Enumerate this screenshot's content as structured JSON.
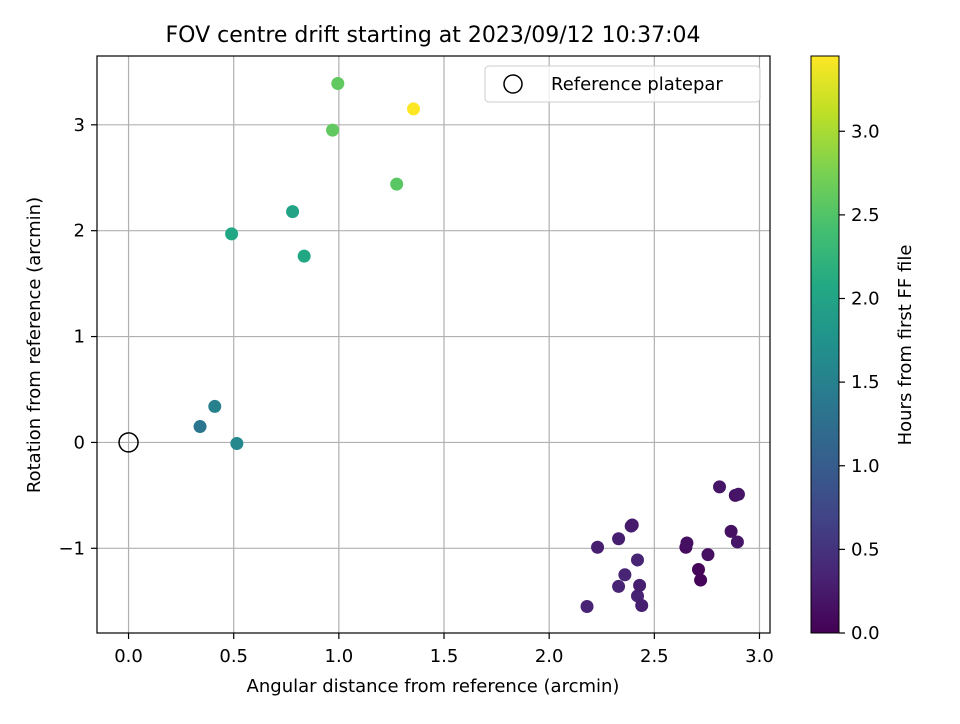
{
  "chart_data": {
    "type": "scatter",
    "title": "FOV centre drift starting at 2023/09/12 10:37:04",
    "xlabel": "Angular distance from reference (arcmin)",
    "ylabel": "Rotation from reference (arcmin)",
    "xlim": [
      -0.15,
      3.05
    ],
    "ylim": [
      -1.8,
      3.65
    ],
    "x_ticks": [
      0.0,
      0.5,
      1.0,
      1.5,
      2.0,
      2.5,
      3.0
    ],
    "x_tick_labels": [
      "0.0",
      "0.5",
      "1.0",
      "1.5",
      "2.0",
      "2.5",
      "3.0"
    ],
    "y_ticks": [
      -1,
      0,
      1,
      2,
      3
    ],
    "y_tick_labels": [
      "−1",
      "0",
      "1",
      "2",
      "3"
    ],
    "grid": true,
    "legend": {
      "position": "top-right",
      "entries": [
        "Reference platepar"
      ]
    },
    "colormap": "viridis",
    "colorbar": {
      "label": "Hours from first FF file",
      "range": [
        0.0,
        3.45
      ],
      "ticks": [
        0.0,
        0.5,
        1.0,
        1.5,
        2.0,
        2.5,
        3.0
      ],
      "tick_labels": [
        "0.0",
        "0.5",
        "1.0",
        "1.5",
        "2.0",
        "2.5",
        "3.0"
      ]
    },
    "reference_point": {
      "name": "Reference platepar",
      "x": 0.0,
      "y": 0.0
    },
    "points": [
      {
        "x": 2.18,
        "y": -1.55,
        "hours": 0.35
      },
      {
        "x": 2.23,
        "y": -0.99,
        "hours": 0.3
      },
      {
        "x": 2.33,
        "y": -0.91,
        "hours": 0.3
      },
      {
        "x": 2.33,
        "y": -1.36,
        "hours": 0.35
      },
      {
        "x": 2.36,
        "y": -1.25,
        "hours": 0.35
      },
      {
        "x": 2.39,
        "y": -0.79,
        "hours": 0.3
      },
      {
        "x": 2.395,
        "y": -0.78,
        "hours": 0.25
      },
      {
        "x": 2.42,
        "y": -1.45,
        "hours": 0.35
      },
      {
        "x": 2.42,
        "y": -1.11,
        "hours": 0.35
      },
      {
        "x": 2.43,
        "y": -1.35,
        "hours": 0.3
      },
      {
        "x": 2.44,
        "y": -1.54,
        "hours": 0.3
      },
      {
        "x": 2.65,
        "y": -0.99,
        "hours": 0.1
      },
      {
        "x": 2.655,
        "y": -0.95,
        "hours": 0.15
      },
      {
        "x": 2.71,
        "y": -1.2,
        "hours": 0.05
      },
      {
        "x": 2.72,
        "y": -1.3,
        "hours": 0.05
      },
      {
        "x": 2.755,
        "y": -1.06,
        "hours": 0.15
      },
      {
        "x": 2.81,
        "y": -0.42,
        "hours": 0.2
      },
      {
        "x": 2.865,
        "y": -0.84,
        "hours": 0.15
      },
      {
        "x": 2.885,
        "y": -0.5,
        "hours": 0.15
      },
      {
        "x": 2.9,
        "y": -0.49,
        "hours": 0.2
      },
      {
        "x": 2.895,
        "y": -0.94,
        "hours": 0.2
      },
      {
        "x": 0.34,
        "y": 0.15,
        "hours": 1.35
      },
      {
        "x": 0.41,
        "y": 0.34,
        "hours": 1.5
      },
      {
        "x": 0.515,
        "y": -0.01,
        "hours": 1.6
      },
      {
        "x": 0.49,
        "y": 1.97,
        "hours": 2.05
      },
      {
        "x": 0.78,
        "y": 2.18,
        "hours": 2.0
      },
      {
        "x": 0.835,
        "y": 1.76,
        "hours": 2.05
      },
      {
        "x": 0.97,
        "y": 2.95,
        "hours": 2.6
      },
      {
        "x": 0.995,
        "y": 3.39,
        "hours": 2.6
      },
      {
        "x": 1.275,
        "y": 2.44,
        "hours": 2.55
      },
      {
        "x": 1.355,
        "y": 3.15,
        "hours": 3.45
      }
    ]
  }
}
